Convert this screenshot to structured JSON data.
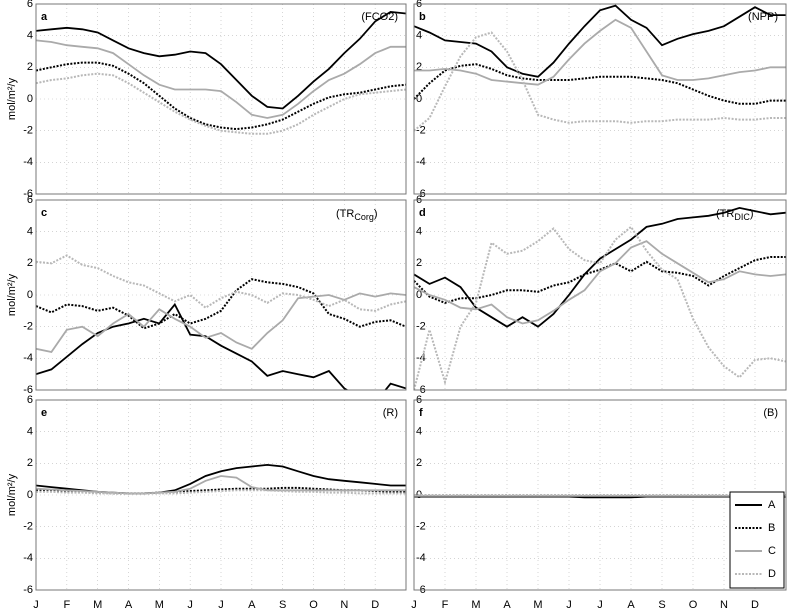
{
  "chart_data": [
    {
      "type": "line",
      "panel": "a",
      "annotation": "(FCO2)",
      "ylabel": "mol/m²/y",
      "ylim": [
        -6,
        6
      ],
      "yticks": [
        6,
        4,
        2,
        0,
        -2,
        -4,
        -6
      ],
      "grid": true,
      "series": [
        {
          "color": "#000000",
          "style": "solid",
          "values": [
            4.3,
            4.4,
            4.5,
            4.4,
            4.2,
            3.7,
            3.2,
            2.9,
            2.7,
            2.8,
            3.0,
            2.9,
            2.2,
            1.2,
            0.2,
            -0.5,
            -0.6,
            0.2,
            1.1,
            1.9,
            2.9,
            3.8,
            4.9,
            5.5,
            5.4
          ]
        },
        {
          "color": "#000000",
          "style": "dotted",
          "values": [
            1.8,
            2.0,
            2.2,
            2.3,
            2.3,
            2.1,
            1.6,
            1.0,
            0.2,
            -0.6,
            -1.2,
            -1.6,
            -1.8,
            -1.9,
            -1.8,
            -1.6,
            -1.3,
            -0.8,
            -0.3,
            0.1,
            0.3,
            0.4,
            0.6,
            0.8,
            0.9
          ]
        },
        {
          "color": "#aaaaaa",
          "style": "solid",
          "values": [
            3.7,
            3.6,
            3.4,
            3.3,
            3.2,
            2.9,
            2.2,
            1.5,
            0.9,
            0.6,
            0.6,
            0.6,
            0.5,
            -0.2,
            -1.0,
            -1.2,
            -1.0,
            -0.3,
            0.5,
            1.2,
            1.6,
            2.2,
            2.9,
            3.3,
            3.3
          ]
        },
        {
          "color": "#b8b8b8",
          "style": "dotted",
          "values": [
            1.0,
            1.2,
            1.3,
            1.5,
            1.6,
            1.5,
            1.0,
            0.4,
            -0.2,
            -0.8,
            -1.3,
            -1.7,
            -2.0,
            -2.1,
            -2.2,
            -2.2,
            -2.0,
            -1.6,
            -1.0,
            -0.5,
            0.0,
            0.3,
            0.4,
            0.5,
            0.6
          ]
        }
      ]
    },
    {
      "type": "line",
      "panel": "b",
      "annotation": "(NPP)",
      "ylim": [
        -6,
        6
      ],
      "yticks": [
        6,
        4,
        2,
        0,
        -2,
        -4,
        -6
      ],
      "grid": true,
      "series": [
        {
          "color": "#000000",
          "style": "solid",
          "values": [
            4.6,
            4.2,
            3.7,
            3.6,
            3.5,
            3.0,
            2.0,
            1.6,
            1.4,
            2.3,
            3.5,
            4.6,
            5.6,
            5.9,
            5.0,
            4.5,
            3.4,
            3.8,
            4.1,
            4.3,
            4.6,
            5.2,
            5.8,
            5.3,
            5.3
          ]
        },
        {
          "color": "#000000",
          "style": "dotted",
          "values": [
            0.0,
            1.0,
            1.8,
            2.1,
            2.2,
            1.9,
            1.5,
            1.3,
            1.2,
            1.2,
            1.2,
            1.3,
            1.4,
            1.4,
            1.4,
            1.3,
            1.2,
            1.0,
            0.6,
            0.2,
            -0.1,
            -0.3,
            -0.3,
            -0.1,
            -0.1
          ]
        },
        {
          "color": "#aaaaaa",
          "style": "solid",
          "values": [
            1.8,
            1.8,
            1.9,
            1.8,
            1.6,
            1.2,
            1.1,
            1.0,
            0.9,
            1.4,
            2.5,
            3.5,
            4.3,
            5.0,
            4.5,
            3.0,
            1.5,
            1.2,
            1.2,
            1.3,
            1.5,
            1.7,
            1.8,
            2.0,
            2.0
          ]
        },
        {
          "color": "#b8b8b8",
          "style": "dotted",
          "values": [
            -2.0,
            -1.2,
            0.8,
            2.7,
            3.9,
            4.2,
            3.0,
            1.2,
            -1.0,
            -1.3,
            -1.5,
            -1.4,
            -1.4,
            -1.4,
            -1.5,
            -1.4,
            -1.4,
            -1.3,
            -1.3,
            -1.3,
            -1.2,
            -1.3,
            -1.3,
            -1.2,
            -1.2
          ]
        }
      ]
    },
    {
      "type": "line",
      "panel": "c",
      "annotation": {
        "text": "(TR",
        "sub": "Corg",
        "end": ")"
      },
      "ylabel": "mol/m²/y",
      "ylim": [
        -6,
        6
      ],
      "yticks": [
        6,
        4,
        2,
        0,
        -2,
        -4,
        -6
      ],
      "grid": true,
      "series": [
        {
          "color": "#000000",
          "style": "solid",
          "values": [
            -5.0,
            -4.7,
            -3.9,
            -3.1,
            -2.4,
            -2.0,
            -1.8,
            -1.5,
            -1.8,
            -0.6,
            -2.5,
            -2.6,
            -3.2,
            -3.7,
            -4.2,
            -5.1,
            -4.8,
            -5.0,
            -5.2,
            -4.8,
            -5.9,
            -6.5,
            -6.8,
            -5.6,
            -5.9
          ]
        },
        {
          "color": "#000000",
          "style": "dotted",
          "values": [
            -0.7,
            -1.1,
            -0.6,
            -0.7,
            -1.0,
            -0.8,
            -1.3,
            -2.1,
            -1.8,
            -1.2,
            -1.8,
            -1.5,
            -1.0,
            0.3,
            1.0,
            0.8,
            0.7,
            0.5,
            0.1,
            -1.2,
            -1.5,
            -2.0,
            -1.7,
            -1.6,
            -2.0
          ]
        },
        {
          "color": "#aaaaaa",
          "style": "solid",
          "values": [
            -3.4,
            -3.6,
            -2.2,
            -2.0,
            -2.6,
            -1.8,
            -1.2,
            -2.0,
            -0.9,
            -1.5,
            -2.0,
            -2.7,
            -2.4,
            -3.0,
            -3.4,
            -2.4,
            -1.6,
            -0.2,
            -0.1,
            0.0,
            -0.3,
            0.1,
            -0.1,
            0.1,
            0.0
          ]
        },
        {
          "color": "#b8b8b8",
          "style": "dotted",
          "values": [
            2.1,
            2.0,
            2.5,
            1.9,
            1.7,
            1.2,
            0.8,
            0.6,
            0.1,
            -0.4,
            0.0,
            -0.8,
            -0.2,
            0.2,
            0.0,
            -0.5,
            0.1,
            0.0,
            -0.3,
            -0.7,
            -0.3,
            -0.9,
            -1.0,
            -0.6,
            -0.4
          ]
        }
      ]
    },
    {
      "type": "line",
      "panel": "d",
      "annotation": {
        "text": "(TR",
        "sub": "DIC",
        "end": ")"
      },
      "ylim": [
        -6,
        6
      ],
      "yticks": [
        6,
        4,
        2,
        0,
        -2,
        -4,
        -6
      ],
      "grid": true,
      "series": [
        {
          "color": "#000000",
          "style": "solid",
          "values": [
            1.3,
            0.7,
            1.1,
            0.5,
            -0.8,
            -1.4,
            -2.0,
            -1.4,
            -2.0,
            -1.2,
            0.0,
            1.3,
            2.3,
            2.9,
            3.5,
            4.3,
            4.5,
            4.8,
            4.9,
            5.0,
            5.2,
            5.5,
            5.3,
            5.1,
            5.2
          ]
        },
        {
          "color": "#000000",
          "style": "dotted",
          "values": [
            0.9,
            -0.1,
            -0.5,
            -0.2,
            -0.2,
            0.0,
            0.3,
            0.3,
            0.2,
            0.6,
            0.8,
            1.3,
            1.6,
            2.0,
            1.5,
            2.1,
            1.5,
            1.4,
            1.2,
            0.6,
            1.2,
            1.7,
            2.2,
            2.4,
            2.4
          ]
        },
        {
          "color": "#aaaaaa",
          "style": "solid",
          "values": [
            0.5,
            0.0,
            -0.3,
            -0.8,
            -0.9,
            -0.6,
            -1.4,
            -1.8,
            -1.6,
            -1.0,
            -0.3,
            0.3,
            1.5,
            2.0,
            3.0,
            3.4,
            2.6,
            2.0,
            1.4,
            0.8,
            1.0,
            1.5,
            1.3,
            1.2,
            1.3
          ]
        },
        {
          "color": "#b8b8b8",
          "style": "dotted",
          "values": [
            -6.0,
            -2.2,
            -5.5,
            -2.0,
            -0.5,
            3.3,
            2.6,
            2.8,
            3.4,
            4.2,
            2.9,
            2.2,
            2.0,
            3.5,
            4.3,
            2.8,
            1.6,
            1.0,
            -1.5,
            -3.3,
            -4.5,
            -5.2,
            -4.1,
            -4.0,
            -4.2
          ]
        }
      ]
    },
    {
      "type": "line",
      "panel": "e",
      "annotation": "(R)",
      "ylabel": "mol/m²/y",
      "ylim": [
        -6,
        6
      ],
      "yticks": [
        6,
        4,
        2,
        0,
        -2,
        -4,
        -6
      ],
      "grid": true,
      "categories": [
        "J",
        null,
        "F",
        null,
        "M",
        null,
        "A",
        null,
        "M",
        null,
        "J",
        null,
        "J",
        null,
        "A",
        null,
        "S",
        null,
        "O",
        null,
        "N",
        null,
        "D",
        null,
        null
      ],
      "series": [
        {
          "color": "#000000",
          "style": "solid",
          "values": [
            0.6,
            0.5,
            0.4,
            0.3,
            0.2,
            0.15,
            0.1,
            0.1,
            0.15,
            0.3,
            0.7,
            1.2,
            1.5,
            1.7,
            1.8,
            1.9,
            1.8,
            1.5,
            1.2,
            1.0,
            0.9,
            0.8,
            0.7,
            0.6,
            0.6
          ]
        },
        {
          "color": "#000000",
          "style": "dotted",
          "values": [
            0.3,
            0.3,
            0.25,
            0.2,
            0.15,
            0.1,
            0.1,
            0.1,
            0.15,
            0.2,
            0.25,
            0.3,
            0.35,
            0.4,
            0.4,
            0.4,
            0.45,
            0.45,
            0.4,
            0.35,
            0.3,
            0.3,
            0.25,
            0.2,
            0.2
          ]
        },
        {
          "color": "#aaaaaa",
          "style": "solid",
          "values": [
            0.4,
            0.35,
            0.3,
            0.25,
            0.2,
            0.15,
            0.1,
            0.1,
            0.15,
            0.2,
            0.4,
            0.9,
            1.2,
            1.1,
            0.5,
            0.3,
            0.3,
            0.3,
            0.3,
            0.3,
            0.3,
            0.3,
            0.3,
            0.3,
            0.3
          ]
        },
        {
          "color": "#b8b8b8",
          "style": "dotted",
          "values": [
            0.2,
            0.2,
            0.15,
            0.15,
            0.1,
            0.1,
            0.1,
            0.1,
            0.1,
            0.1,
            0.15,
            0.2,
            0.25,
            0.3,
            0.3,
            0.3,
            0.25,
            0.2,
            0.2,
            0.15,
            0.15,
            0.1,
            0.1,
            0.1,
            0.1
          ]
        }
      ]
    },
    {
      "type": "line",
      "panel": "f",
      "annotation": "(B)",
      "ylim": [
        -6,
        6
      ],
      "yticks": [
        6,
        4,
        2,
        0,
        -2,
        -4,
        -6
      ],
      "grid": true,
      "legend": "lower right",
      "categories": [
        "J",
        null,
        "F",
        null,
        "M",
        null,
        "A",
        null,
        "M",
        null,
        "J",
        null,
        "J",
        null,
        "A",
        null,
        "S",
        null,
        "O",
        null,
        "N",
        null,
        "D",
        null,
        null
      ],
      "series": [
        {
          "name": "A",
          "color": "#000000",
          "style": "solid",
          "values": [
            -0.1,
            -0.1,
            -0.1,
            -0.1,
            -0.1,
            -0.1,
            -0.1,
            -0.1,
            -0.1,
            -0.1,
            -0.1,
            -0.15,
            -0.15,
            -0.15,
            -0.15,
            -0.1,
            -0.1,
            -0.1,
            -0.1,
            -0.1,
            -0.1,
            -0.1,
            -0.1,
            -0.1,
            -0.1
          ]
        },
        {
          "name": "B",
          "color": "#000000",
          "style": "dotted",
          "values": [
            -0.05,
            -0.05,
            -0.05,
            -0.05,
            -0.05,
            -0.05,
            -0.05,
            -0.05,
            -0.05,
            -0.05,
            -0.05,
            -0.05,
            -0.05,
            -0.05,
            -0.05,
            -0.05,
            -0.05,
            -0.05,
            -0.05,
            -0.05,
            -0.05,
            -0.05,
            -0.05,
            -0.05,
            -0.05
          ]
        },
        {
          "name": "C",
          "color": "#aaaaaa",
          "style": "solid",
          "values": [
            -0.05,
            -0.05,
            -0.05,
            -0.05,
            -0.05,
            -0.05,
            -0.05,
            -0.05,
            -0.05,
            -0.05,
            -0.05,
            -0.05,
            -0.05,
            -0.05,
            -0.05,
            -0.05,
            -0.05,
            -0.05,
            -0.05,
            -0.05,
            -0.05,
            -0.05,
            -0.05,
            -0.05,
            -0.05
          ]
        },
        {
          "name": "D",
          "color": "#b8b8b8",
          "style": "dotted",
          "values": [
            0.0,
            0.0,
            0.0,
            0.0,
            0.0,
            0.0,
            0.0,
            0.0,
            0.0,
            0.0,
            0.0,
            0.0,
            0.0,
            0.0,
            0.0,
            0.0,
            0.0,
            0.0,
            0.0,
            0.0,
            0.0,
            0.0,
            0.0,
            0.0,
            0.0
          ]
        }
      ]
    }
  ]
}
